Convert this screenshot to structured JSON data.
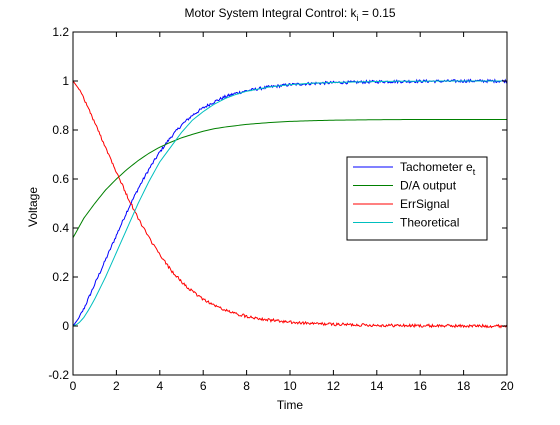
{
  "chart_data": {
    "type": "line",
    "title": {
      "main": "Motor System Integral Control: k",
      "subscript": "i",
      "suffix": " = 0.15"
    },
    "xlabel": "Time",
    "ylabel": "Voltage",
    "xlim": [
      0,
      20
    ],
    "ylim": [
      -0.2,
      1.2
    ],
    "xticks": [
      0,
      2,
      4,
      6,
      8,
      10,
      12,
      14,
      16,
      18,
      20
    ],
    "yticks": [
      -0.2,
      0,
      0.2,
      0.4,
      0.6,
      0.8,
      1,
      1.2
    ],
    "xtick_labels": [
      "0",
      "2",
      "4",
      "6",
      "8",
      "10",
      "12",
      "14",
      "16",
      "18",
      "20"
    ],
    "ytick_labels": [
      "-0.2",
      "0",
      "0.2",
      "0.4",
      "0.6",
      "0.8",
      "1",
      "1.2"
    ],
    "grid": false,
    "legend_position": "right",
    "series": [
      {
        "name": "Tachometer e",
        "name_subscript": "t",
        "color": "#0000ff",
        "noisy": true,
        "x": [
          0,
          0.25,
          0.5,
          0.75,
          1,
          1.5,
          2,
          2.5,
          3,
          3.5,
          4,
          4.5,
          5,
          5.5,
          6,
          6.5,
          7,
          7.5,
          8,
          9,
          10,
          11,
          12,
          13,
          14,
          15,
          16,
          17,
          18,
          19,
          20
        ],
        "y": [
          0,
          0.03,
          0.07,
          0.12,
          0.17,
          0.27,
          0.37,
          0.47,
          0.56,
          0.64,
          0.71,
          0.77,
          0.82,
          0.86,
          0.89,
          0.915,
          0.935,
          0.95,
          0.96,
          0.975,
          0.985,
          0.99,
          0.993,
          0.995,
          0.997,
          0.998,
          0.999,
          0.999,
          1.0,
          1.0,
          1.0
        ]
      },
      {
        "name": "D/A output",
        "color": "#008000",
        "noisy": false,
        "x": [
          0,
          0.5,
          1,
          1.5,
          2,
          2.5,
          3,
          3.5,
          4,
          4.5,
          5,
          5.5,
          6,
          6.5,
          7,
          8,
          9,
          10,
          11,
          12,
          14,
          16,
          18,
          20
        ],
        "y": [
          0.36,
          0.44,
          0.5,
          0.555,
          0.6,
          0.64,
          0.675,
          0.705,
          0.73,
          0.75,
          0.768,
          0.782,
          0.795,
          0.805,
          0.812,
          0.823,
          0.83,
          0.835,
          0.838,
          0.84,
          0.842,
          0.843,
          0.843,
          0.843
        ]
      },
      {
        "name": "ErrSignal",
        "color": "#ff0000",
        "noisy": true,
        "x": [
          0,
          0.25,
          0.5,
          0.75,
          1,
          1.5,
          2,
          2.5,
          3,
          3.5,
          4,
          4.5,
          5,
          5.5,
          6,
          6.5,
          7,
          7.5,
          8,
          9,
          10,
          11,
          12,
          13,
          14,
          15,
          16,
          17,
          18,
          19,
          20
        ],
        "y": [
          1.0,
          0.97,
          0.93,
          0.88,
          0.83,
          0.73,
          0.63,
          0.53,
          0.44,
          0.36,
          0.29,
          0.23,
          0.18,
          0.14,
          0.11,
          0.085,
          0.065,
          0.05,
          0.04,
          0.025,
          0.015,
          0.01,
          0.007,
          0.005,
          0.003,
          0.002,
          0.001,
          0.001,
          0.0,
          0.0,
          0.0
        ]
      },
      {
        "name": "Theoretical",
        "color": "#00bfbf",
        "noisy": false,
        "x": [
          0,
          0.25,
          0.5,
          0.75,
          1,
          1.5,
          2,
          2.5,
          3,
          3.5,
          4,
          4.5,
          5,
          5.5,
          6,
          6.5,
          7,
          7.5,
          8,
          9,
          10,
          11,
          12,
          13,
          14,
          15,
          16,
          17,
          18,
          19,
          20
        ],
        "y": [
          0,
          0.01,
          0.035,
          0.07,
          0.11,
          0.2,
          0.3,
          0.4,
          0.5,
          0.59,
          0.67,
          0.73,
          0.79,
          0.84,
          0.875,
          0.905,
          0.928,
          0.945,
          0.958,
          0.975,
          0.985,
          0.991,
          0.994,
          0.996,
          0.998,
          0.999,
          0.999,
          1.0,
          1.0,
          1.0,
          1.0
        ]
      }
    ]
  }
}
